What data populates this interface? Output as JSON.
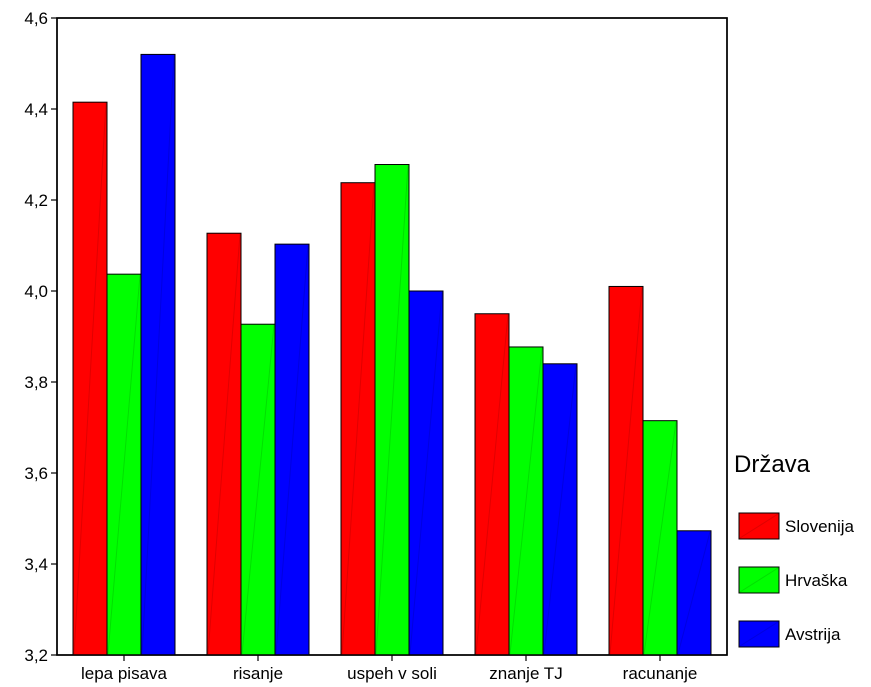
{
  "chart_data": {
    "type": "bar",
    "title": "",
    "xlabel": "",
    "ylabel": "",
    "categories": [
      "lepa pisava",
      "risanje",
      "uspeh v soli",
      "znanje TJ",
      "racunanje"
    ],
    "series": [
      {
        "name": "Slovenija",
        "color": "#ff0000",
        "values": [
          4.415,
          4.127,
          4.238,
          3.95,
          4.01
        ]
      },
      {
        "name": "Hrvaška",
        "color": "#00ff00",
        "values": [
          4.037,
          3.927,
          4.278,
          3.877,
          3.715
        ]
      },
      {
        "name": "Avstrija",
        "color": "#0000ff",
        "values": [
          4.52,
          4.103,
          4.0,
          3.84,
          3.473
        ]
      }
    ],
    "ylim": [
      3.2,
      4.6
    ],
    "yticks": [
      "3,2",
      "3,4",
      "3,6",
      "3,8",
      "4,0",
      "4,2",
      "4,4",
      "4,6"
    ],
    "grid": false,
    "legend": {
      "title": "Država",
      "placement": "right"
    }
  }
}
